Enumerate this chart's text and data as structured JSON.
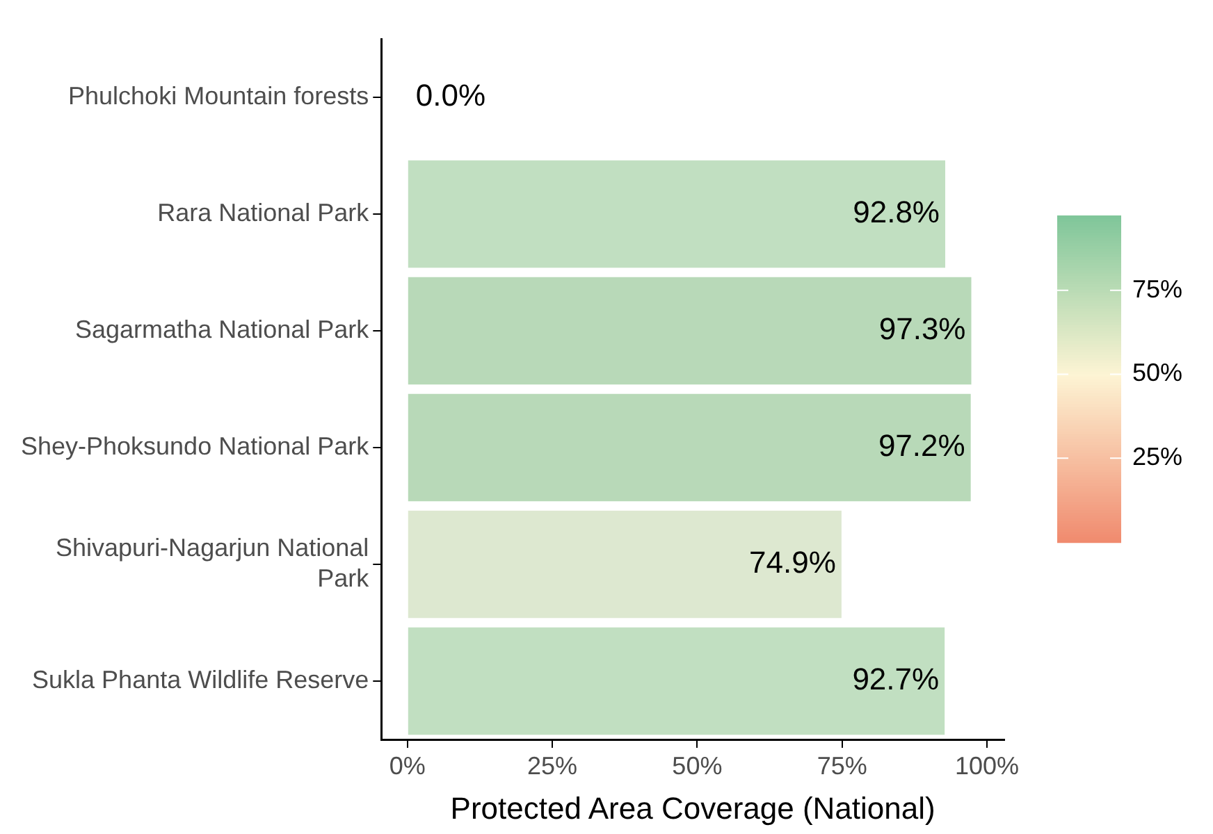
{
  "chart_data": {
    "type": "bar",
    "orientation": "horizontal",
    "xlabel": "Protected Area Coverage (National)",
    "categories": [
      "Phulchoki Mountain forests",
      "Rara National Park",
      "Sagarmatha National Park",
      "Shey-Phoksundo National Park",
      "Shivapuri-Nagarjun National Park",
      "Sukla Phanta Wildlife Reserve"
    ],
    "values": [
      0.0,
      92.8,
      97.3,
      97.2,
      74.9,
      92.7
    ],
    "value_labels": [
      "0.0%",
      "92.8%",
      "97.3%",
      "97.2%",
      "74.9%",
      "92.7%"
    ],
    "colors": [
      "#f4a582",
      "#c1dfc1",
      "#b8d9b8",
      "#b8d9b8",
      "#dde8d0",
      "#c1dfc1"
    ],
    "xlim": [
      -4.5,
      103
    ],
    "xticks": [
      {
        "value": 0,
        "label": "0%"
      },
      {
        "value": 25,
        "label": "25%"
      },
      {
        "value": 50,
        "label": "50%"
      },
      {
        "value": 75,
        "label": "75%"
      },
      {
        "value": 100,
        "label": "100%"
      }
    ],
    "clim": [
      0,
      97.3
    ],
    "cticks": [
      {
        "value": 25,
        "label": "25%"
      },
      {
        "value": 50,
        "label": "50%"
      },
      {
        "value": 75,
        "label": "75%"
      }
    ],
    "grid": false,
    "legend": false
  }
}
